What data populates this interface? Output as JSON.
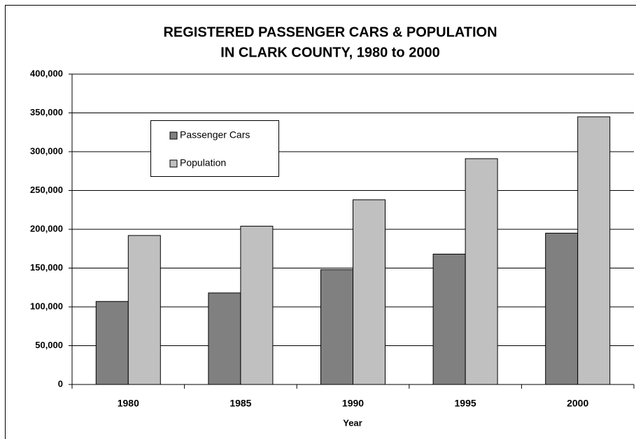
{
  "chart_data": {
    "type": "bar",
    "title": [
      "REGISTERED PASSENGER CARS & POPULATION",
      "IN CLARK COUNTY, 1980 to 2000"
    ],
    "x_label": "Year",
    "categories": [
      "1980",
      "1985",
      "1990",
      "1995",
      "2000"
    ],
    "series": [
      {
        "name": "Passenger Cars",
        "color": "#808080",
        "values": [
          107000,
          118000,
          148000,
          168000,
          195000
        ]
      },
      {
        "name": "Population",
        "color": "#c0c0c0",
        "values": [
          192000,
          204000,
          238000,
          291000,
          345000
        ]
      }
    ],
    "ylim": [
      0,
      400000
    ],
    "yticks": [
      0,
      {
        "value": 50000,
        "label": "50,000"
      },
      {
        "value": 100000,
        "label": "100,000"
      },
      {
        "value": 150000,
        "label": "150,000"
      },
      {
        "value": 200000,
        "label": "200,000"
      },
      {
        "value": 250000,
        "label": "250,000"
      },
      {
        "value": 300000,
        "label": "300,000"
      },
      {
        "value": 350000,
        "label": "350,000"
      },
      {
        "value": 400000,
        "label": "400,000"
      }
    ],
    "grid": true
  }
}
